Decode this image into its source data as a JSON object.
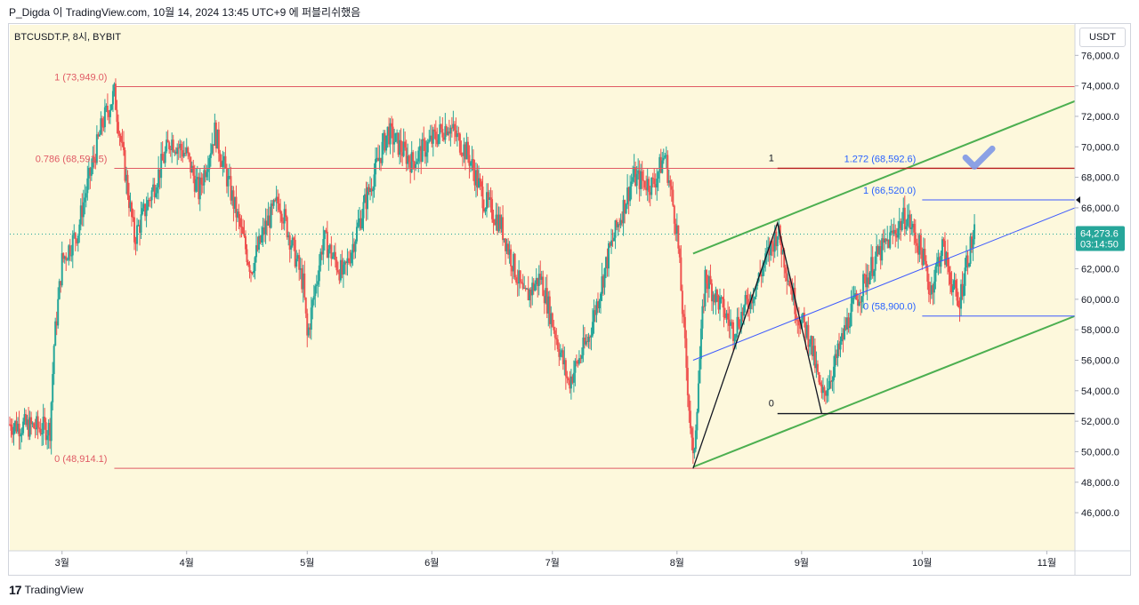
{
  "header": {
    "caption": "P_Digda 이 TradingView.com, 10월 14, 2024 13:45 UTC+9 에 퍼블리쉬했음"
  },
  "footer": {
    "brand": "TradingView",
    "logo_glyph": "17"
  },
  "toolbar": {
    "currency": "USDT"
  },
  "colors": {
    "background": "#fdf8dc",
    "up_candle": "#26a69a",
    "down_candle": "#ef5350",
    "fib_line": "#e05a64",
    "fib_label": "#e05a64",
    "channel_green": "#4caf50",
    "blue_line": "#3d5afe",
    "blue_label": "#2962ff",
    "current_price_line": "#26a69a",
    "dark_red_line": "#b71c1c",
    "black_line": "#131722",
    "checkmark": "#7e97e6"
  },
  "chart_data": {
    "type": "candlestick",
    "title": "BTCUSDT.P, 8시, BYBIT",
    "xlabel": "",
    "ylabel": "",
    "currency": "USDT",
    "ylim": [
      43500,
      78000
    ],
    "x_range": [
      "2024-02-17",
      "2024-11-08"
    ],
    "y_ticks": [
      "46,000.0",
      "48,000.0",
      "50,000.0",
      "52,000.0",
      "54,000.0",
      "56,000.0",
      "58,000.0",
      "60,000.0",
      "62,000.0",
      "64,000.0",
      "66,000.0",
      "68,000.0",
      "70,000.0",
      "72,000.0",
      "74,000.0",
      "76,000.0"
    ],
    "y_tick_values": [
      46000,
      48000,
      50000,
      52000,
      54000,
      56000,
      58000,
      60000,
      62000,
      64000,
      66000,
      68000,
      70000,
      72000,
      74000,
      76000
    ],
    "x_ticks": [
      {
        "label": "3월",
        "date": "2024-03-01"
      },
      {
        "label": "4월",
        "date": "2024-04-01"
      },
      {
        "label": "5월",
        "date": "2024-05-01"
      },
      {
        "label": "6월",
        "date": "2024-06-01"
      },
      {
        "label": "7월",
        "date": "2024-07-01"
      },
      {
        "label": "8월",
        "date": "2024-08-01"
      },
      {
        "label": "9월",
        "date": "2024-09-01"
      },
      {
        "label": "10월",
        "date": "2024-10-01"
      },
      {
        "label": "11월",
        "date": "2024-11-01"
      }
    ],
    "current_price": {
      "value": 64273.6,
      "label": "64,273.6",
      "countdown": "03:14:50"
    },
    "price_path": [
      [
        "2024-02-17",
        51800
      ],
      [
        "2024-02-27",
        51500
      ],
      [
        "2024-02-28",
        57000
      ],
      [
        "2024-03-01",
        62500
      ],
      [
        "2024-03-05",
        64500
      ],
      [
        "2024-03-06",
        66000
      ],
      [
        "2024-03-11",
        71500
      ],
      [
        "2024-03-14",
        73500
      ],
      [
        "2024-03-19",
        64000
      ],
      [
        "2024-03-24",
        67500
      ],
      [
        "2024-03-28",
        70500
      ],
      [
        "2024-04-01",
        69500
      ],
      [
        "2024-04-04",
        67000
      ],
      [
        "2024-04-08",
        71000
      ],
      [
        "2024-04-13",
        66000
      ],
      [
        "2024-04-17",
        62000
      ],
      [
        "2024-04-21",
        65000
      ],
      [
        "2024-04-24",
        66500
      ],
      [
        "2024-04-30",
        61000
      ],
      [
        "2024-05-01",
        57500
      ],
      [
        "2024-05-05",
        64000
      ],
      [
        "2024-05-10",
        61500
      ],
      [
        "2024-05-15",
        66000
      ],
      [
        "2024-05-21",
        71000
      ],
      [
        "2024-05-27",
        69000
      ],
      [
        "2024-06-05",
        71500
      ],
      [
        "2024-06-10",
        69500
      ],
      [
        "2024-06-14",
        66500
      ],
      [
        "2024-06-18",
        65000
      ],
      [
        "2024-06-24",
        60000
      ],
      [
        "2024-06-28",
        61500
      ],
      [
        "2024-07-05",
        54500
      ],
      [
        "2024-07-10",
        57500
      ],
      [
        "2024-07-15",
        63000
      ],
      [
        "2024-07-21",
        68000
      ],
      [
        "2024-07-26",
        67500
      ],
      [
        "2024-07-29",
        69500
      ],
      [
        "2024-08-01",
        64500
      ],
      [
        "2024-08-05",
        49200
      ],
      [
        "2024-08-08",
        61500
      ],
      [
        "2024-08-15",
        58000
      ],
      [
        "2024-08-20",
        60500
      ],
      [
        "2024-08-26",
        64500
      ],
      [
        "2024-08-31",
        59000
      ],
      [
        "2024-09-03",
        57500
      ],
      [
        "2024-09-06",
        53500
      ],
      [
        "2024-09-09",
        55500
      ],
      [
        "2024-09-13",
        59000
      ],
      [
        "2024-09-19",
        62500
      ],
      [
        "2024-09-27",
        65500
      ],
      [
        "2024-10-01",
        63000
      ],
      [
        "2024-10-03",
        60500
      ],
      [
        "2024-10-06",
        63500
      ],
      [
        "2024-10-10",
        59500
      ],
      [
        "2024-10-12",
        62500
      ],
      [
        "2024-10-14",
        64300
      ]
    ],
    "fib_retracement": {
      "from_date": "2024-03-14",
      "to_date": "2024-11-08",
      "levels": [
        {
          "label": "1 (73,949.0)",
          "value": 73949.0
        },
        {
          "label": "0.786 (68,591.5)",
          "value": 68591.5
        },
        {
          "label": "0 (48,914.1)",
          "value": 48914.1
        }
      ]
    },
    "fib_extension": {
      "levels": [
        {
          "label": "1.272 (68,592.6)",
          "value": 68592.6,
          "from_date": "2024-10-01",
          "to_date": "2024-11-08"
        },
        {
          "label": "1 (66,520.0)",
          "value": 66520.0,
          "from_date": "2024-10-01",
          "to_date": "2024-11-08"
        },
        {
          "label": "0 (58,900.0)",
          "value": 58900.0,
          "from_date": "2024-10-01",
          "to_date": "2024-11-08"
        }
      ]
    },
    "horizontal_levels": [
      {
        "label": "1",
        "value": 68592.6,
        "from_date": "2024-08-26",
        "to_date": "2024-11-08",
        "color_key": "dark_red_line"
      },
      {
        "label": "0",
        "value": 52500,
        "from_date": "2024-08-26",
        "to_date": "2024-11-08",
        "color_key": "black_line"
      }
    ],
    "zigzag": [
      [
        "2024-08-05",
        48900
      ],
      [
        "2024-08-26",
        65000
      ],
      [
        "2024-09-06",
        52500
      ]
    ],
    "channel": {
      "upper": [
        [
          "2024-08-05",
          63000
        ],
        [
          "2024-11-08",
          73000
        ]
      ],
      "lower": [
        [
          "2024-08-05",
          49000
        ],
        [
          "2024-11-08",
          58900
        ]
      ]
    },
    "midline": [
      [
        "2024-08-05",
        56000
      ],
      [
        "2024-11-08",
        66000
      ]
    ]
  }
}
